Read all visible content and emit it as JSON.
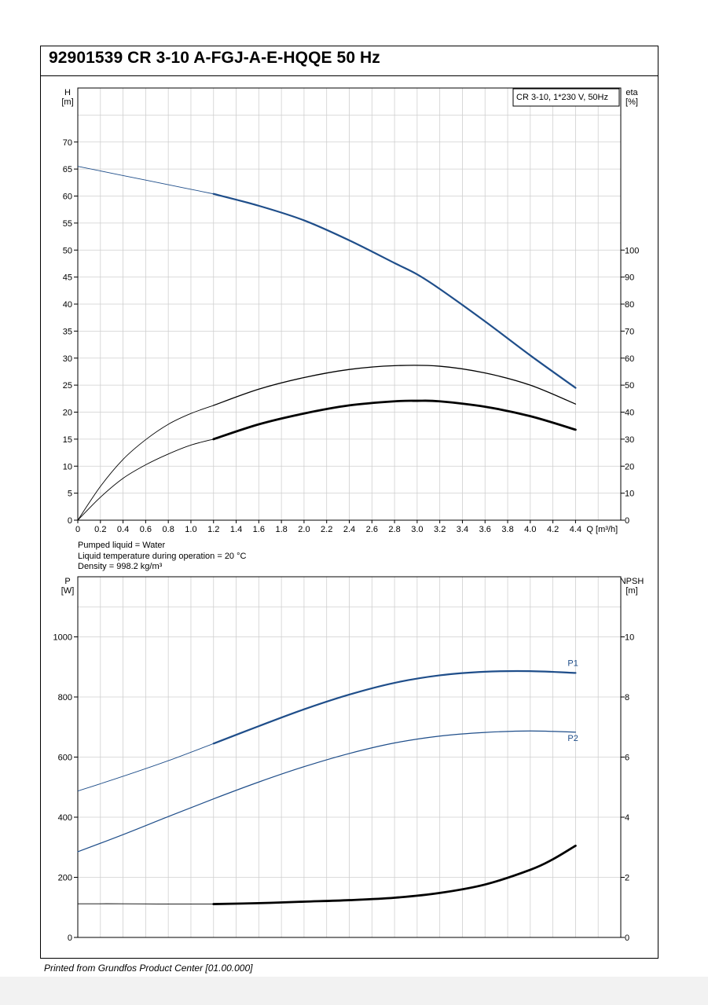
{
  "document": {
    "title": "92901539 CR 3-10 A-FGJ-A-E-HQQE 50 Hz",
    "footer": "Printed from Grundfos Product Center [01.00.000]"
  },
  "conditions": [
    "Pumped liquid = Water",
    "Liquid temperature during operation = 20 °C",
    "Density = 998.2 kg/m³"
  ],
  "colors": {
    "blue": "#1f4e8a",
    "black": "#000000",
    "grid": "#cfcfcf"
  },
  "chart_data": [
    {
      "type": "line",
      "legend_box": "CR 3-10, 1*230 V, 50Hz",
      "xlabel": "Q [m³/h]",
      "ylabel_left": [
        "H",
        "[m]"
      ],
      "ylabel_right": [
        "eta",
        "[%]"
      ],
      "xlim": [
        0,
        4.8
      ],
      "ylim_left": [
        0,
        80
      ],
      "ylim_right": [
        0,
        160
      ],
      "x_ticks": [
        "0",
        "0.2",
        "0.4",
        "0.6",
        "0.8",
        "1.0",
        "1.2",
        "1.4",
        "1.6",
        "1.8",
        "2.0",
        "2.2",
        "2.4",
        "2.6",
        "2.8",
        "3.0",
        "3.2",
        "3.4",
        "3.6",
        "3.8",
        "4.0",
        "4.2",
        "4.4"
      ],
      "y_ticks_left": [
        "0",
        "5",
        "10",
        "15",
        "20",
        "25",
        "30",
        "35",
        "40",
        "45",
        "50",
        "55",
        "60",
        "65",
        "70"
      ],
      "y_ticks_right": [
        "0",
        "10",
        "20",
        "30",
        "40",
        "50",
        "60",
        "70",
        "80",
        "90",
        "100"
      ],
      "grid": true,
      "series": [
        {
          "axis": "left",
          "color": "blue",
          "thin_until": 1.2,
          "width": 2.2,
          "x": [
            0,
            0.4,
            0.8,
            1.2,
            1.6,
            2.0,
            2.4,
            2.8,
            3.0,
            3.2,
            3.6,
            4.0,
            4.4
          ],
          "y": [
            65.5,
            63.8,
            62.1,
            60.4,
            58.2,
            55.5,
            51.8,
            47.6,
            45.5,
            42.8,
            36.8,
            30.5,
            24.5
          ]
        },
        {
          "axis": "right",
          "color": "black",
          "thin_until": 1.2,
          "width": 1.3,
          "x": [
            0,
            0.2,
            0.4,
            0.6,
            0.8,
            1.0,
            1.2,
            1.6,
            2.0,
            2.4,
            2.8,
            3.2,
            3.6,
            4.0,
            4.4
          ],
          "y": [
            0,
            12.5,
            22.5,
            29.8,
            35.5,
            39.5,
            42.5,
            48.5,
            52.8,
            55.8,
            57.2,
            57.0,
            54.5,
            50.0,
            43.0
          ]
        },
        {
          "axis": "right",
          "color": "black",
          "thin_until": 1.2,
          "width": 2.8,
          "x": [
            0,
            0.2,
            0.4,
            0.6,
            0.8,
            1.0,
            1.2,
            1.6,
            2.0,
            2.4,
            2.8,
            3.0,
            3.2,
            3.6,
            4.0,
            4.4
          ],
          "y": [
            0,
            8.5,
            15.5,
            20.5,
            24.5,
            27.8,
            30.0,
            35.5,
            39.5,
            42.5,
            44.0,
            44.2,
            44.0,
            42.0,
            38.5,
            33.5
          ]
        }
      ]
    },
    {
      "type": "line",
      "xlim": [
        0,
        4.8
      ],
      "ylabel_left": [
        "P",
        "[W]"
      ],
      "ylabel_right": [
        "NPSH",
        "[m]"
      ],
      "ylim_left": [
        0,
        1200
      ],
      "ylim_right": [
        0,
        12
      ],
      "y_ticks_left": [
        "0",
        "200",
        "400",
        "600",
        "800",
        "1000"
      ],
      "y_ticks_right": [
        "0",
        "2",
        "4",
        "6",
        "8",
        "10"
      ],
      "grid": true,
      "series": [
        {
          "name": "P1",
          "axis": "left",
          "color": "blue",
          "thin_until": 1.2,
          "width": 2.2,
          "x": [
            0,
            0.4,
            0.8,
            1.2,
            1.6,
            2.0,
            2.4,
            2.8,
            3.2,
            3.6,
            4.0,
            4.4
          ],
          "y": [
            487,
            536,
            588,
            645,
            703,
            759,
            808,
            847,
            872,
            884,
            886,
            880
          ]
        },
        {
          "name": "P2",
          "axis": "left",
          "color": "blue",
          "thin_until": 0,
          "width": 1.2,
          "x": [
            0,
            0.4,
            0.8,
            1.2,
            1.6,
            2.0,
            2.4,
            2.8,
            3.2,
            3.6,
            4.0,
            4.4
          ],
          "y": [
            285,
            342,
            402,
            461,
            517,
            568,
            612,
            647,
            670,
            682,
            687,
            683
          ]
        },
        {
          "axis": "right",
          "color": "black",
          "thin_until": 1.2,
          "width": 2.8,
          "x": [
            0,
            0.4,
            0.8,
            1.2,
            1.6,
            2.0,
            2.4,
            2.8,
            3.2,
            3.6,
            4.0,
            4.2,
            4.4
          ],
          "y": [
            1.12,
            1.12,
            1.11,
            1.11,
            1.14,
            1.19,
            1.24,
            1.32,
            1.48,
            1.76,
            2.25,
            2.6,
            3.05
          ]
        }
      ]
    }
  ]
}
